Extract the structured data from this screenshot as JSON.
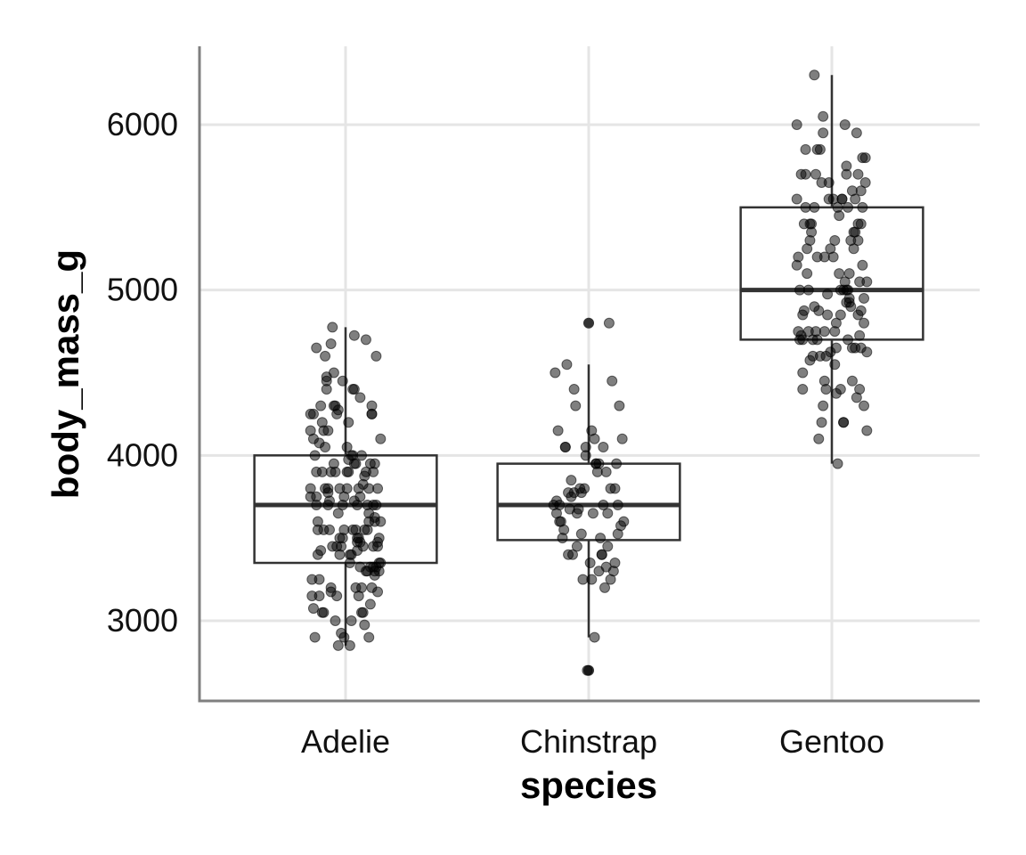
{
  "chart_data": {
    "type": "box",
    "xlabel": "species",
    "ylabel": "body_mass_g",
    "categories": [
      "Adelie",
      "Chinstrap",
      "Gentoo"
    ],
    "y_ticks": [
      3000,
      4000,
      5000,
      6000
    ],
    "ylim": [
      2520,
      6470
    ],
    "grid": true,
    "point_color": "#000000",
    "box_color": "#333333",
    "boxes": [
      {
        "category": "Adelie",
        "q1": 3350,
        "median": 3700,
        "q3": 4000,
        "whisker_low": 2850,
        "whisker_high": 4775,
        "outliers": []
      },
      {
        "category": "Chinstrap",
        "q1": 3488,
        "median": 3700,
        "q3": 3950,
        "whisker_low": 2900,
        "whisker_high": 4550,
        "outliers": [
          4800,
          2700
        ]
      },
      {
        "category": "Gentoo",
        "q1": 4700,
        "median": 5000,
        "q3": 5500,
        "whisker_low": 3950,
        "whisker_high": 6300,
        "outliers": []
      }
    ],
    "points": [
      {
        "category": "Adelie",
        "jitter": [
          -0.24,
          0.01,
          -0.18,
          0.12,
          -0.05,
          0.2,
          -0.1,
          0.08,
          -0.22,
          0.15,
          -0.02,
          0.18,
          -0.14,
          0.05,
          -0.2,
          0.22,
          -0.08,
          0.1,
          -0.16,
          0.03,
          0.24,
          -0.12,
          0.07,
          -0.04,
          0.16,
          -0.19,
          0.11,
          -0.06,
          0.2,
          -0.23,
          0.02,
          0.14,
          -0.1,
          0.19,
          -0.15,
          0.06,
          -0.01,
          0.23,
          -0.2,
          0.09,
          -0.07,
          0.17,
          -0.13,
          0.04,
          0.21,
          -0.17,
          0.13,
          -0.03,
          -0.24,
          0.08,
          0.18,
          -0.09,
          0.01,
          -0.21,
          0.15,
          -0.11,
          0.22,
          -0.05,
          0.1,
          -0.18,
          0.06,
          0.2,
          -0.14,
          0.03,
          -0.08,
          0.24,
          -0.22,
          0.12,
          -0.02,
          0.16,
          -0.16,
          0.07,
          -0.12,
          0.19,
          -0.06,
          0.21,
          -0.2,
          0.05,
          0.11,
          -0.1,
          0.14,
          -0.24,
          0.02,
          0.23,
          -0.15,
          0.09,
          -0.04,
          0.17,
          -0.19,
          0.13,
          -0.07,
          0.04,
          -0.13,
          0.2,
          -0.17,
          0.08,
          0.1,
          -0.01,
          0.24,
          -0.11,
          0.06,
          -0.22,
          0.18,
          -0.03,
          0.15,
          -0.2,
          0.01,
          0.22,
          -0.09,
          0.12,
          -0.14,
          0.07,
          -0.05,
          0.19,
          -0.18,
          0.16,
          -0.12,
          0.03,
          0.21,
          -0.23,
          0.09,
          -0.06,
          0.13,
          -0.16,
          0.05,
          0.2,
          -0.08,
          0.11,
          -0.21,
          0.17,
          -0.02,
          0.23,
          -0.13,
          0.08,
          0.14,
          -0.1,
          0.02,
          -0.19,
          0.18,
          -0.04,
          0.22,
          -0.15,
          0.06,
          -0.07,
          0.16,
          -0.24,
          0.1,
          0.19,
          -0.01,
          -0.12,
          0.04
        ],
        "values": [
          3750,
          3800,
          3250,
          3450,
          3650,
          3625,
          4675,
          3475,
          4250,
          3300,
          3700,
          3200,
          3800,
          4400,
          3700,
          3450,
          4500,
          3325,
          4200,
          3400,
          3600,
          3800,
          3950,
          3800,
          3800,
          3550,
          3200,
          3150,
          3950,
          3250,
          3900,
          3300,
          3900,
          3325,
          4150,
          3950,
          3550,
          3300,
          4650,
          3150,
          3900,
          3100,
          4400,
          3000,
          4600,
          3425,
          2975,
          3450,
          4150,
          3500,
          4300,
          3450,
          4050,
          2900,
          3700,
          3550,
          3800,
          2850,
          3750,
          3150,
          4400,
          3600,
          4050,
          2850,
          3950,
          3350,
          4100,
          3050,
          4450,
          3600,
          3900,
          3550,
          4150,
          3700,
          4250,
          3700,
          3900,
          3550,
          4000,
          3200,
          4700,
          3800,
          4200,
          3350,
          3550,
          3800,
          3500,
          3950,
          3600,
          3550,
          4300,
          3400,
          4450,
          3300,
          4300,
          3700,
          4350,
          2900,
          4100,
          3725,
          4725,
          3075,
          4250,
          2925,
          3550,
          3750,
          3900,
          3175,
          4775,
          3825,
          4600,
          3200,
          4275,
          3900,
          4075,
          2900,
          3775,
          3350,
          3325,
          3150,
          3500,
          3450,
          3875,
          3050,
          4000,
          3275,
          4300,
          3050,
          4000,
          3325,
          3500,
          3500,
          4475,
          3425,
          3900,
          3175,
          3975,
          3400,
          4250,
          3400,
          3475,
          3050,
          3725,
          3000,
          3650,
          4250,
          3475,
          3450,
          3750,
          3700,
          4000
        ]
      },
      {
        "category": "Chinstrap",
        "jitter": [
          -0.18,
          0.12,
          -0.08,
          0.2,
          -0.22,
          0.05,
          0.15,
          -0.12,
          0.02,
          -0.24,
          0.18,
          -0.05,
          0.1,
          -0.16,
          0.22,
          -0.02,
          0.07,
          -0.2,
          0.13,
          -0.1,
          0.24,
          -0.14,
          0.04,
          -0.06,
          0.17,
          -0.21,
          0.09,
          -0.03,
          0.2,
          -0.15,
          0.11,
          -0.09,
          0.01,
          0.23,
          -0.19,
          0.06,
          -0.12,
          0.14,
          -0.01,
          -0.23,
          0.19,
          0.03,
          -0.17,
          0.08,
          -0.07,
          0.16,
          -0.11,
          0.21,
          -0.04,
          -0.13,
          0.12,
          0.05,
          -0.2,
          0.1,
          0.18,
          -0.08,
          0.02,
          -0.16,
          0.15,
          -0.05,
          0.07,
          -0.22,
          0.13,
          -0.02,
          0.09,
          -0.1,
          0.04,
          -0.14
        ],
        "values": [
          3500,
          3900,
          3650,
          3525,
          3725,
          3950,
          3250,
          3750,
          4150,
          3700,
          3800,
          3775,
          3700,
          4050,
          3575,
          4050,
          3300,
          3700,
          3450,
          4400,
          3600,
          3400,
          2900,
          3800,
          3300,
          4150,
          3400,
          3800,
          3700,
          4550,
          3200,
          4300,
          3350,
          4100,
          3600,
          3900,
          3850,
          4800,
          2700,
          4500,
          3950,
          3650,
          3550,
          3500,
          3675,
          4450,
          3400,
          4300,
          3250,
          3675,
          3325,
          3950,
          3600,
          4050,
          3350,
          3450,
          3250,
          4050,
          3800,
          3525,
          3950,
          3650,
          3650,
          4000,
          3400,
          3775,
          4100,
          3775
        ]
      },
      {
        "category": "Gentoo",
        "jitter": [
          -0.2,
          0.1,
          -0.05,
          0.18,
          -0.15,
          0.02,
          0.22,
          -0.1,
          0.06,
          -0.24,
          0.14,
          -0.02,
          0.2,
          -0.18,
          0.08,
          -0.08,
          0.24,
          -0.12,
          0.03,
          0.16,
          -0.21,
          0.11,
          -0.04,
          0.19,
          -0.16,
          0.05,
          -0.09,
          0.23,
          -0.13,
          0.01,
          0.15,
          -0.22,
          0.09,
          -0.06,
          0.21,
          -0.19,
          0.12,
          -0.01,
          0.17,
          -0.14,
          0.04,
          -0.11,
          0.22,
          -0.23,
          0.07,
          0.13,
          -0.07,
          0.2,
          -0.17,
          0.02,
          -0.03,
          0.18,
          -0.2,
          0.1,
          -0.12,
          0.24,
          -0.06,
          0.06,
          0.14,
          -0.24,
          0.08,
          -0.15,
          0.19,
          -0.02,
          0.11,
          -0.18,
          0.03,
          0.21,
          -0.1,
          0.16,
          -0.05,
          -0.22,
          0.12,
          0.01,
          -0.13,
          0.23,
          -0.08,
          0.09,
          -0.16,
          0.17,
          -0.01,
          0.05,
          -0.21,
          0.15,
          -0.11,
          0.2,
          -0.04,
          0.13,
          -0.19,
          0.07,
          0.22,
          -0.14,
          0.02,
          -0.07,
          0.18,
          -0.23,
          0.1,
          -0.09,
          0.24,
          -0.17,
          0.06,
          0.14,
          -0.03,
          -0.12,
          0.19,
          0.04,
          -0.2,
          0.11,
          -0.15,
          0.21,
          0.08,
          -0.06,
          0.16,
          -0.18,
          0.03,
          -0.1,
          0.2,
          -0.24,
          0.12
        ],
        "values": [
          4500,
          5700,
          4450,
          5700,
          5400,
          4550,
          4800,
          5200,
          4400,
          5150,
          4650,
          5550,
          4650,
          5850,
          4200,
          5850,
          4150,
          6300,
          4800,
          5350,
          5700,
          5000,
          4400,
          5050,
          5000,
          5100,
          4100,
          5650,
          4600,
          5550,
          5250,
          4700,
          5050,
          6050,
          5150,
          5400,
          4950,
          5250,
          4350,
          5350,
          3950,
          5700,
          4300,
          4750,
          5550,
          4900,
          4200,
          5400,
          5100,
          5300,
          4850,
          5300,
          4400,
          5000,
          4900,
          5050,
          4300,
          5000,
          4450,
          5550,
          4200,
          5300,
          4400,
          5650,
          4700,
          5700,
          4650,
          5800,
          4700,
          5550,
          4750,
          5000,
          5100,
          5200,
          4700,
          5800,
          4600,
          6000,
          4750,
          5950,
          4625,
          5450,
          4725,
          5350,
          4750,
          5600,
          4600,
          5300,
          4875,
          5550,
          4950,
          5400,
          4750,
          5650,
          4850,
          5200,
          4925,
          4875,
          4625,
          5250,
          4850,
          5600,
          4975,
          5500,
          4725,
          5500,
          4700,
          5500,
          4575,
          5500,
          5000,
          5950,
          4650,
          5500,
          4375,
          5850,
          4875,
          6000,
          4925,
          4850,
          5750,
          5200,
          5400
        ]
      }
    ]
  }
}
